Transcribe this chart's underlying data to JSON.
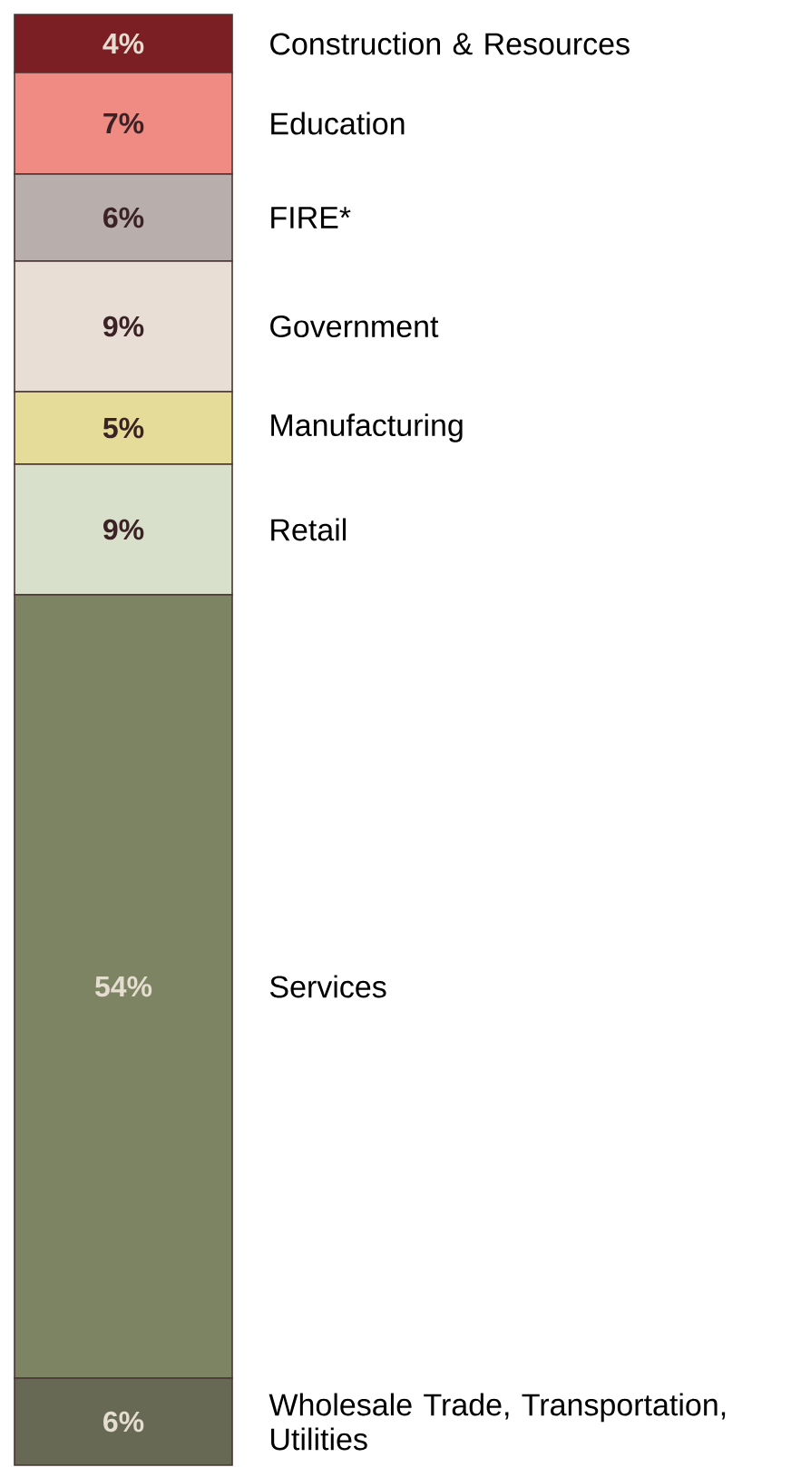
{
  "chart_data": {
    "type": "bar",
    "stacked": true,
    "legend": false,
    "tick_labels": false,
    "categories": [
      null
    ],
    "series": [
      {
        "name": "Wholesale Trade, Transportation, Utilities",
        "color": "#676954",
        "values": [
          6
        ],
        "value_labels": [
          "6%"
        ]
      },
      {
        "name": "Services",
        "color": "#7c8463",
        "values": [
          54
        ],
        "value_labels": [
          "54%"
        ]
      },
      {
        "name": "Retail",
        "color": "#d8dfca",
        "values": [
          9
        ],
        "value_labels": [
          "9%"
        ]
      },
      {
        "name": "Manufacturing",
        "color": "#e6dc9a",
        "values": [
          5
        ],
        "value_labels": [
          "5%"
        ]
      },
      {
        "name": "Government",
        "color": "#e8ded6",
        "values": [
          9
        ],
        "value_labels": [
          "9%"
        ]
      },
      {
        "name": "FIRE*",
        "color": "#b8aeab",
        "values": [
          6
        ],
        "value_labels": [
          "6%"
        ]
      },
      {
        "name": "Education",
        "color": "#f08b84",
        "values": [
          7
        ],
        "value_labels": [
          "7%"
        ]
      },
      {
        "name": "Construction & Resources",
        "color": "#7b1f24",
        "values": [
          4
        ],
        "value_labels": [
          "4%"
        ]
      }
    ]
  }
}
